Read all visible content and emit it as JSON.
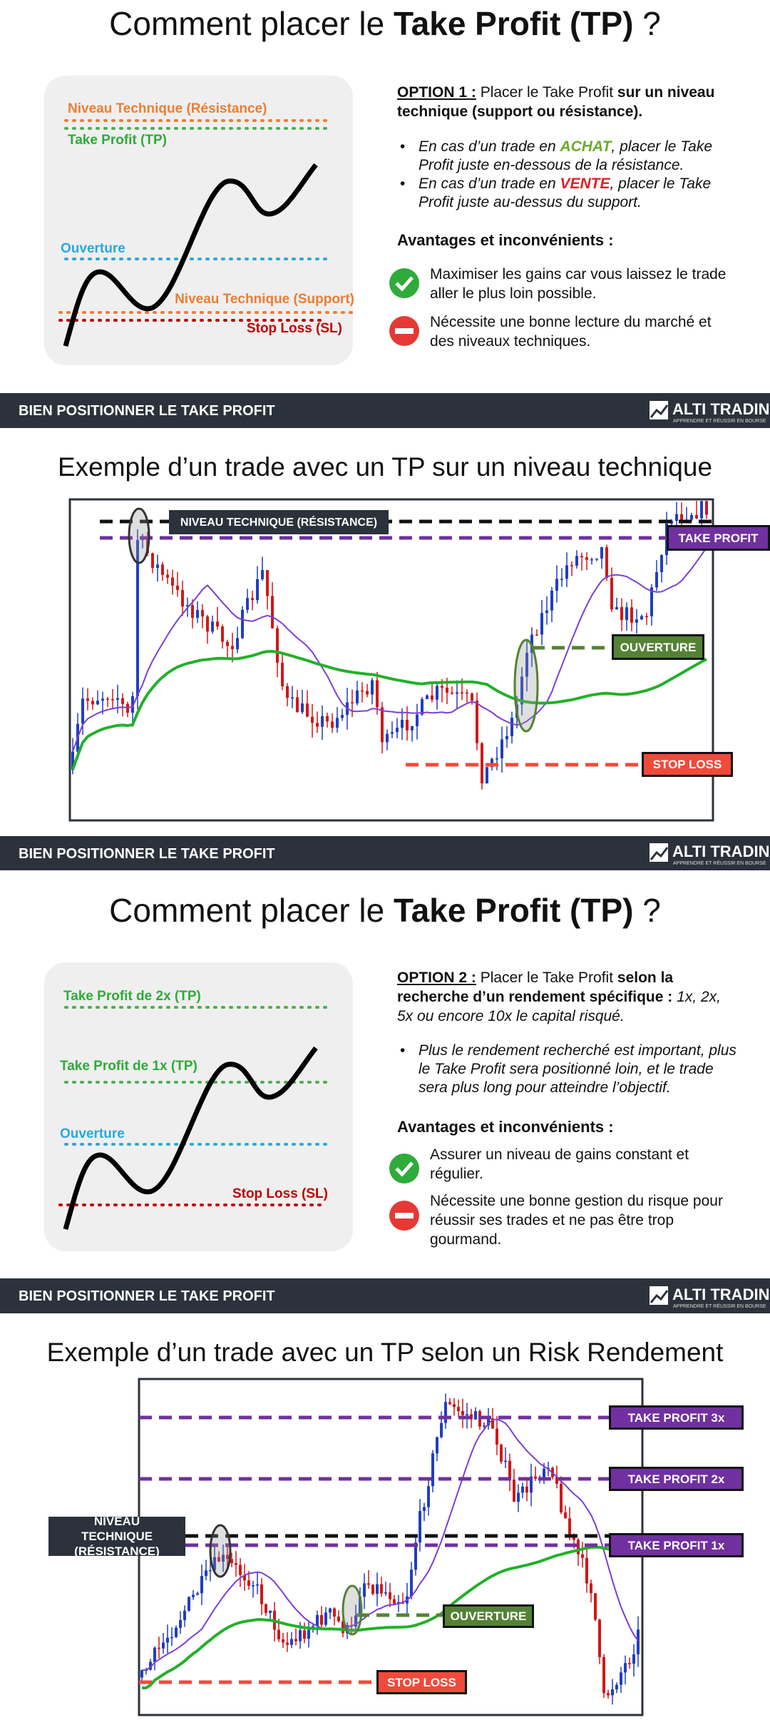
{
  "slides": [
    {
      "title": {
        "prefix": "Comment placer le ",
        "bold": "Take Profit (TP)",
        "suffix": " ?"
      },
      "diagram": {
        "resistance": "Niveau Technique (Résistance)",
        "take_profit": "Take Profit (TP)",
        "opening": "Ouverture",
        "support": "Niveau Technique (Support)",
        "stop_loss": "Stop Loss (SL)"
      },
      "option": {
        "label": "OPTION 1 :",
        "text": " Placer le Take Profit ",
        "bold": "sur un niveau technique (support ou résistance)."
      },
      "bullets": [
        [
          "En cas d’un trade en ",
          "ACHAT",
          ", placer le Take Profit juste en-dessous de la résistance."
        ],
        [
          "En cas d’un trade en ",
          "VENTE",
          ", placer le Take Profit juste au-dessus du support."
        ]
      ],
      "pros_cons_title": "Avantages et inconvénients :",
      "pro": "Maximiser les gains car vous laissez le trade aller le plus loin possible.",
      "con": "Nécessite une bonne lecture du marché et des niveaux techniques."
    },
    {
      "title": "Exemple d’un trade avec un TP sur un niveau technique",
      "labels": {
        "resistance": "NIVEAU TECHNIQUE (RÉSISTANCE)",
        "take_profit": "TAKE PROFIT",
        "opening": "OUVERTURE",
        "stop_loss": "STOP LOSS"
      }
    },
    {
      "title": {
        "prefix": "Comment placer le ",
        "bold": "Take Profit (TP)",
        "suffix": " ?"
      },
      "diagram": {
        "take_profit_2x": "Take Profit de 2x (TP)",
        "take_profit_1x": "Take Profit de 1x (TP)",
        "opening": "Ouverture",
        "stop_loss": "Stop Loss (SL)"
      },
      "option": {
        "label": "OPTION 2 :",
        "text": " Placer le Take Profit ",
        "bold": "selon la recherche d’un rendement spécifique :",
        "italic": " 1x, 2x, 5x ou encore 10x le capital risqué."
      },
      "bullets": [
        "Plus le rendement recherché est important, plus le Take Profit sera positionné loin, et le trade sera plus long pour atteindre l’objectif."
      ],
      "pros_cons_title": "Avantages et inconvénients :",
      "pro": "Assurer un niveau de gains constant et régulier.",
      "con": "Nécessite une bonne gestion du risque pour réussir ses trades et ne pas être trop gourmand."
    },
    {
      "title": "Exemple d’un trade avec un TP selon un Risk Rendement",
      "labels": {
        "resistance": "NIVEAU TECHNIQUE (RÉSISTANCE)",
        "take_profit_3x": "TAKE PROFIT 3x",
        "take_profit_2x": "TAKE PROFIT 2x",
        "take_profit_1x": "TAKE PROFIT 1x",
        "opening": "OUVERTURE",
        "stop_loss": "STOP LOSS"
      }
    }
  ],
  "footer": {
    "title": "BIEN POSITIONNER LE TAKE PROFIT",
    "brand": "ALTI TRADING",
    "tagline": "APPRENDRE ET RÉUSSIR EN BOURSE"
  }
}
